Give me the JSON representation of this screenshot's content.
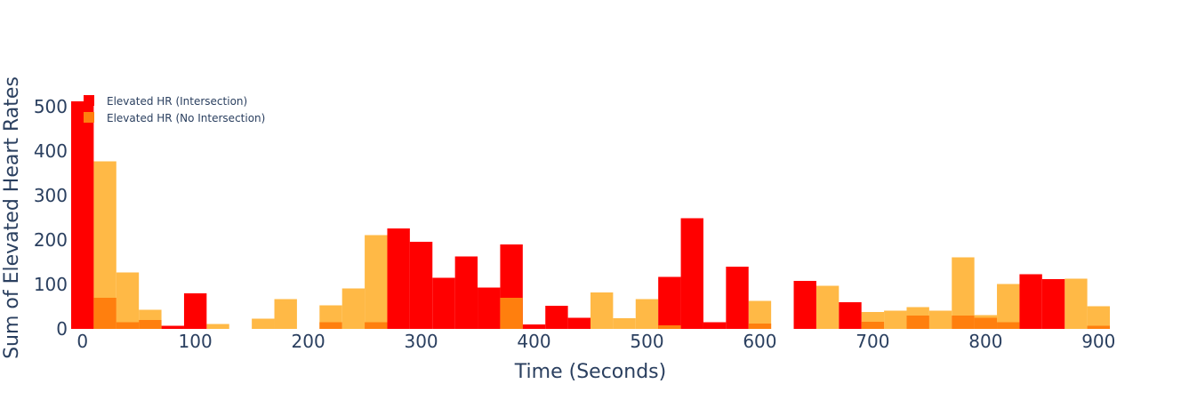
{
  "chart_data": {
    "type": "bar",
    "barmode": "overlay",
    "xlabel": "Time (Seconds)",
    "ylabel": "Sum of Elevated Heart Rates",
    "xlim": [
      -10,
      910
    ],
    "ylim": [
      0,
      540
    ],
    "bin_width": 20,
    "x_ticks": [
      0,
      100,
      200,
      300,
      400,
      500,
      600,
      700,
      800,
      900
    ],
    "y_ticks": [
      0,
      100,
      200,
      300,
      400,
      500
    ],
    "legend_position": "top-left",
    "x": [
      0,
      20,
      40,
      60,
      80,
      100,
      120,
      140,
      160,
      180,
      200,
      220,
      240,
      260,
      280,
      300,
      320,
      340,
      360,
      380,
      400,
      420,
      440,
      460,
      480,
      500,
      520,
      540,
      560,
      580,
      600,
      620,
      640,
      660,
      680,
      700,
      720,
      740,
      760,
      780,
      800,
      820,
      840,
      860,
      880,
      900
    ],
    "series": [
      {
        "name": "Elevated HR (Intersection)",
        "color": "#ff0000",
        "values": [
          512,
          0,
          0,
          0,
          7,
          80,
          0,
          0,
          0,
          0,
          0,
          0,
          0,
          0,
          226,
          196,
          115,
          163,
          93,
          190,
          10,
          52,
          25,
          0,
          0,
          0,
          117,
          249,
          15,
          140,
          0,
          0,
          108,
          0,
          60,
          0,
          0,
          0,
          0,
          0,
          0,
          0,
          123,
          112,
          0,
          0
        ]
      },
      {
        "name": "Elevated HR (No Intersection)",
        "color": "#ff7f0e",
        "values": [
          0,
          70,
          15,
          20,
          0,
          0,
          0,
          0,
          0,
          0,
          0,
          15,
          0,
          15,
          0,
          0,
          0,
          0,
          0,
          70,
          0,
          0,
          0,
          0,
          0,
          0,
          8,
          0,
          0,
          0,
          12,
          0,
          0,
          0,
          0,
          16,
          0,
          30,
          0,
          30,
          25,
          15,
          0,
          0,
          0,
          7
        ]
      },
      {
        "name": "",
        "color": "#ffb946",
        "values": [
          0,
          377,
          127,
          43,
          0,
          0,
          11,
          0,
          23,
          67,
          0,
          53,
          91,
          211,
          0,
          0,
          0,
          0,
          0,
          0,
          0,
          0,
          0,
          82,
          24,
          67,
          0,
          0,
          0,
          0,
          63,
          0,
          0,
          97,
          0,
          38,
          41,
          49,
          41,
          161,
          31,
          101,
          0,
          0,
          113,
          51
        ]
      }
    ]
  }
}
